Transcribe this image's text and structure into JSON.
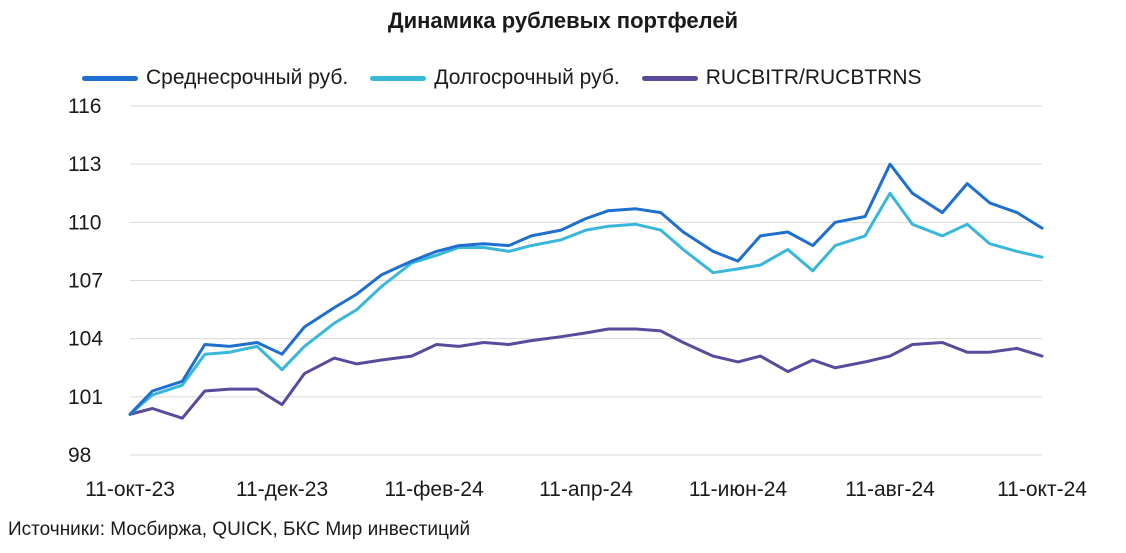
{
  "chart_data": {
    "type": "line",
    "title": "Динамика рублевых портфелей",
    "xlabel": "",
    "ylabel": "",
    "ylim": [
      98,
      116
    ],
    "yticks": [
      "116",
      "113",
      "110",
      "107",
      "104",
      "101",
      "98"
    ],
    "ytick_values": [
      116,
      113,
      110,
      107,
      104,
      101,
      98
    ],
    "xticks": [
      "11-окт-23",
      "11-дек-23",
      "11-фев-24",
      "11-апр-24",
      "11-июн-24",
      "11-авг-24",
      "11-окт-24"
    ],
    "grid": "horizontal",
    "legend": "top",
    "x": [
      "2023-10-11",
      "2023-10-20",
      "2023-11-01",
      "2023-11-10",
      "2023-11-20",
      "2023-12-01",
      "2023-12-11",
      "2023-12-20",
      "2024-01-01",
      "2024-01-10",
      "2024-01-20",
      "2024-02-01",
      "2024-02-11",
      "2024-02-20",
      "2024-03-01",
      "2024-03-11",
      "2024-03-20",
      "2024-04-01",
      "2024-04-11",
      "2024-04-20",
      "2024-05-01",
      "2024-05-11",
      "2024-05-20",
      "2024-06-01",
      "2024-06-11",
      "2024-06-20",
      "2024-07-01",
      "2024-07-11",
      "2024-07-20",
      "2024-08-01",
      "2024-08-11",
      "2024-08-20",
      "2024-09-01",
      "2024-09-11",
      "2024-09-20",
      "2024-10-01",
      "2024-10-11"
    ],
    "series": [
      {
        "name": "Среднесрочный руб.",
        "color": "#1f6fd0",
        "values": [
          100.1,
          101.3,
          101.8,
          103.7,
          103.6,
          103.8,
          103.2,
          104.6,
          105.6,
          106.3,
          107.3,
          108.0,
          108.5,
          108.8,
          108.9,
          108.8,
          109.3,
          109.6,
          110.2,
          110.6,
          110.7,
          110.5,
          109.5,
          108.5,
          108.0,
          109.3,
          109.5,
          108.8,
          110.0,
          110.3,
          113.0,
          111.5,
          110.5,
          112.0,
          111.0,
          110.5,
          109.7
        ]
      },
      {
        "name": "Долгосрочный руб.",
        "color": "#38b7d9",
        "values": [
          100.1,
          101.1,
          101.6,
          103.2,
          103.3,
          103.6,
          102.4,
          103.6,
          104.8,
          105.5,
          106.7,
          107.9,
          108.3,
          108.7,
          108.7,
          108.5,
          108.8,
          109.1,
          109.6,
          109.8,
          109.9,
          109.6,
          108.6,
          107.4,
          107.6,
          107.8,
          108.6,
          107.5,
          108.8,
          109.3,
          111.5,
          109.9,
          109.3,
          109.9,
          108.9,
          108.5,
          108.2
        ]
      },
      {
        "name": "RUCBITR/RUCBTRNS",
        "color": "#5b4a9c",
        "values": [
          100.1,
          100.4,
          99.9,
          101.3,
          101.4,
          101.4,
          100.6,
          102.2,
          103.0,
          102.7,
          102.9,
          103.1,
          103.7,
          103.6,
          103.8,
          103.7,
          103.9,
          104.1,
          104.3,
          104.5,
          104.5,
          104.4,
          103.8,
          103.1,
          102.8,
          103.1,
          102.3,
          102.9,
          102.5,
          102.8,
          103.1,
          103.7,
          103.8,
          103.3,
          103.3,
          103.5,
          103.1
        ]
      }
    ]
  },
  "source": "Источники: Мосбиржа, QUICK, БКС Мир инвестиций"
}
